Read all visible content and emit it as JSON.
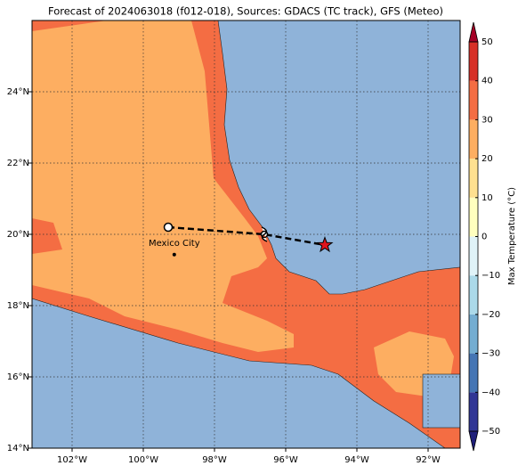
{
  "chart_data": {
    "type": "map",
    "title": "Forecast of 2024063018 (f012-018), Sources: GDACS (TC track), GFS (Meteo)",
    "xlim": [
      -103.125,
      -91.1
    ],
    "ylim": [
      14,
      26
    ],
    "xticks": [
      {
        "value": -102,
        "label": "102°W"
      },
      {
        "value": -100,
        "label": "100°W"
      },
      {
        "value": -98,
        "label": "98°W"
      },
      {
        "value": -96,
        "label": "96°W"
      },
      {
        "value": -94,
        "label": "94°W"
      },
      {
        "value": -92,
        "label": "92°W"
      }
    ],
    "yticks": [
      {
        "value": 14,
        "label": "14°N"
      },
      {
        "value": 16,
        "label": "16°N"
      },
      {
        "value": 18,
        "label": "18°N"
      },
      {
        "value": 20,
        "label": "20°N"
      },
      {
        "value": 22,
        "label": "22°N"
      },
      {
        "value": 24,
        "label": "24°N"
      }
    ],
    "grid": true,
    "track": {
      "lon": [
        -99.3,
        -96.6,
        -94.9
      ],
      "lat": [
        20.2,
        20.0,
        19.7
      ]
    },
    "city": {
      "name": "Mexico City",
      "lon": -99.13,
      "lat": 19.43
    },
    "colorbar": {
      "label": "Max Temperature (°C)",
      "lim": [
        -50,
        50
      ],
      "ticks": [
        {
          "value": -50,
          "label": "−50"
        },
        {
          "value": -40,
          "label": "−40"
        },
        {
          "value": -30,
          "label": "−30"
        },
        {
          "value": -20,
          "label": "−20"
        },
        {
          "value": -10,
          "label": "−10"
        },
        0,
        10,
        20,
        30,
        40,
        50
      ],
      "colors": [
        "#313695",
        "#4575b4",
        "#74add1",
        "#abd9e9",
        "#e0f3f8",
        "#ffffbf",
        "#fee090",
        "#fdae61",
        "#f46d43",
        "#d73027"
      ],
      "under": "#1f1f7a",
      "over": "#a50026"
    }
  }
}
